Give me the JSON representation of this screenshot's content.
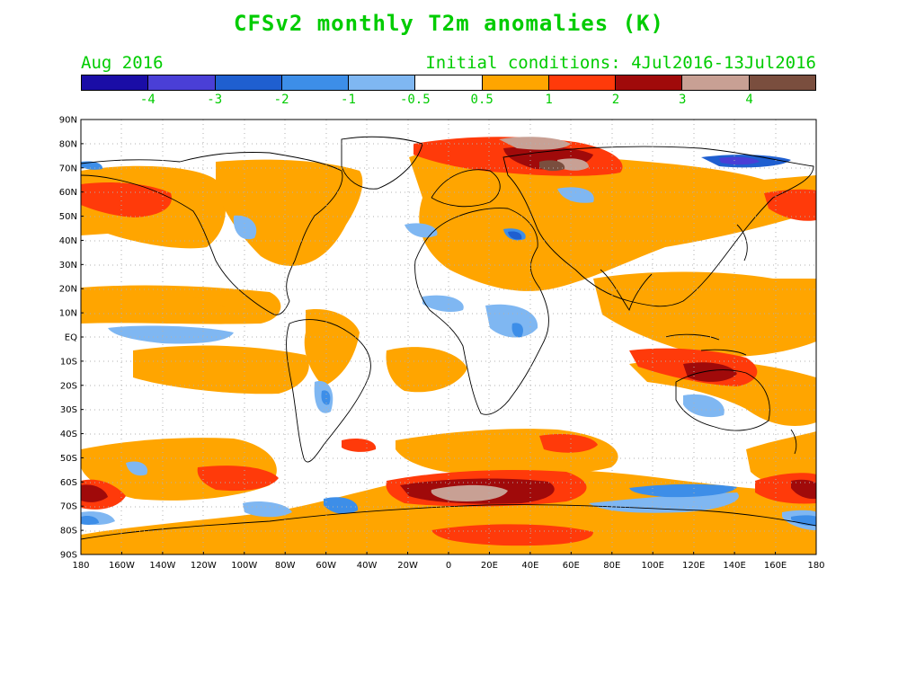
{
  "title": "CFSv2 monthly T2m anomalies (K)",
  "subtitle_left": "Aug 2016",
  "subtitle_right": "Initial conditions: 4Jul2016-13Jul2016",
  "colorbar": {
    "colors": [
      "#1a0da6",
      "#4a3fd6",
      "#1f5fd0",
      "#3d8ee8",
      "#7fb7f2",
      "#ffffff",
      "#ffa500",
      "#ff3a0a",
      "#a00a0a",
      "#c8a094",
      "#7a4e3e"
    ],
    "labels": [
      "-4",
      "-3",
      "-2",
      "-1",
      "-0.5",
      "0.5",
      "1",
      "2",
      "3",
      "4"
    ]
  },
  "lat_labels": [
    "90N",
    "80N",
    "70N",
    "60N",
    "50N",
    "40N",
    "30N",
    "20N",
    "10N",
    "EQ",
    "10S",
    "20S",
    "30S",
    "40S",
    "50S",
    "60S",
    "70S",
    "80S",
    "90S"
  ],
  "lon_labels": [
    "180",
    "160W",
    "140W",
    "120W",
    "100W",
    "80W",
    "60W",
    "40W",
    "20W",
    "0",
    "20E",
    "40E",
    "60E",
    "80E",
    "100E",
    "120E",
    "140E",
    "160E",
    "180"
  ],
  "colors": {
    "text": "#00cc00",
    "grid": "#b0b0b0",
    "coast": "#000000"
  }
}
